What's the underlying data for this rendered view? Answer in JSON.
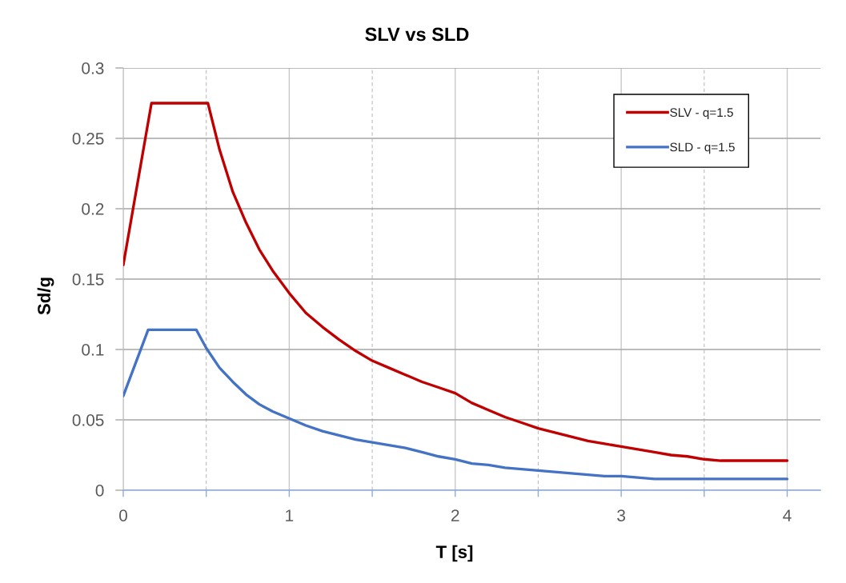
{
  "chart_data": {
    "type": "line",
    "title": "SLV vs SLD",
    "xlabel": "T [s]",
    "ylabel": "Sd/g",
    "xlim": [
      0,
      4.2
    ],
    "xticks": [
      0,
      {
        "value": 0.5,
        "label": null
      },
      1,
      {
        "value": 1.5,
        "label": null
      },
      2,
      {
        "value": 2.5,
        "label": null
      },
      3,
      {
        "value": 3.5,
        "label": null
      },
      4
    ],
    "ylim": [
      0,
      0.3
    ],
    "yticks": [
      0,
      0.05,
      0.1,
      0.15,
      0.2,
      0.25,
      0.3
    ],
    "grid": true,
    "legend": "top right",
    "marker": "none",
    "line_style": "solid",
    "series": [
      {
        "name": "SLV - q=1.5",
        "color": "#c00000",
        "x": [
          0,
          0.17,
          0.51,
          0.58,
          0.66,
          0.74,
          0.82,
          0.9,
          1.0,
          1.1,
          1.2,
          1.3,
          1.4,
          1.5,
          1.6,
          1.7,
          1.8,
          1.9,
          2.0,
          2.1,
          2.2,
          2.3,
          2.4,
          2.5,
          2.6,
          2.7,
          2.8,
          2.9,
          3.0,
          3.1,
          3.2,
          3.3,
          3.4,
          3.5,
          3.6,
          3.7,
          4.0
        ],
        "values": [
          0.16,
          0.275,
          0.275,
          0.242,
          0.212,
          0.19,
          0.171,
          0.156,
          0.14,
          0.126,
          0.116,
          0.107,
          0.099,
          0.092,
          0.087,
          0.082,
          0.077,
          0.073,
          0.069,
          0.062,
          0.057,
          0.052,
          0.048,
          0.044,
          0.041,
          0.038,
          0.035,
          0.033,
          0.031,
          0.029,
          0.027,
          0.025,
          0.024,
          0.022,
          0.021,
          0.021,
          0.021
        ]
      },
      {
        "name": "SLD - q=1.5",
        "color": "#4472c4",
        "x": [
          0,
          0.15,
          0.44,
          0.5,
          0.58,
          0.66,
          0.74,
          0.82,
          0.9,
          1.0,
          1.1,
          1.2,
          1.3,
          1.4,
          1.5,
          1.6,
          1.7,
          1.8,
          1.9,
          2.0,
          2.1,
          2.2,
          2.3,
          2.4,
          2.5,
          2.6,
          2.7,
          2.8,
          2.9,
          3.0,
          3.1,
          3.2,
          4.0
        ],
        "values": [
          0.067,
          0.114,
          0.114,
          0.101,
          0.087,
          0.077,
          0.068,
          0.061,
          0.056,
          0.051,
          0.046,
          0.042,
          0.039,
          0.036,
          0.034,
          0.032,
          0.03,
          0.027,
          0.024,
          0.022,
          0.019,
          0.018,
          0.016,
          0.015,
          0.014,
          0.013,
          0.012,
          0.011,
          0.01,
          0.01,
          0.009,
          0.008,
          0.008
        ]
      }
    ]
  }
}
